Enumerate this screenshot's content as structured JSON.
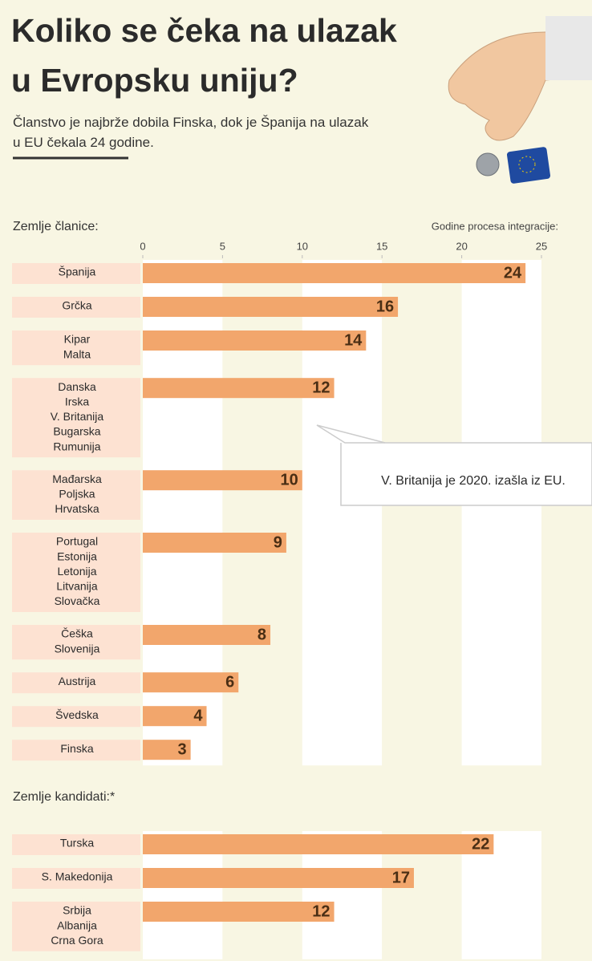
{
  "title": [
    "Koliko se čeka na ulazak",
    "u Evropsku uniju?"
  ],
  "subtitle": [
    "Članstvo je najbrže dobila Finska, dok je Španija na ulazak",
    "u EU čekala 24 godine."
  ],
  "axis_label": "Godine procesa integracije:",
  "chart_data": [
    {
      "type": "bar",
      "title": "Zemlje članice:",
      "color": "#f2a66c",
      "grid": true,
      "categories": [
        [
          "Španija"
        ],
        [
          "Grčka"
        ],
        [
          "Kipar",
          "Malta"
        ],
        [
          "Danska",
          "Irska",
          "V. Britanija",
          "Bugarska",
          "Rumunija"
        ],
        [
          "Mađarska",
          "Poljska",
          "Hrvatska"
        ],
        [
          "Portugal",
          "Estonija",
          "Letonija",
          "Litvanija",
          "Slovačka"
        ],
        [
          "Češka",
          "Slovenija"
        ],
        [
          "Austrija"
        ],
        [
          "Švedska"
        ],
        [
          "Finska"
        ]
      ],
      "values": [
        24,
        16,
        14,
        12,
        10,
        9,
        8,
        6,
        4,
        3
      ],
      "xlim": [
        0,
        25
      ],
      "xticks": [
        0,
        5,
        10,
        15,
        20,
        25
      ],
      "annotation": "V. Britanija je 2020. izašla iz EU."
    },
    {
      "type": "bar",
      "title": "Zemlje kandidati:*",
      "color": "#f2a66c",
      "grid": true,
      "categories": [
        [
          "Turska"
        ],
        [
          "S. Makedonija"
        ],
        [
          "Srbija",
          "Albanija",
          "Crna Gora"
        ]
      ],
      "values": [
        22,
        17,
        12
      ],
      "xlim": [
        0,
        25
      ]
    }
  ]
}
